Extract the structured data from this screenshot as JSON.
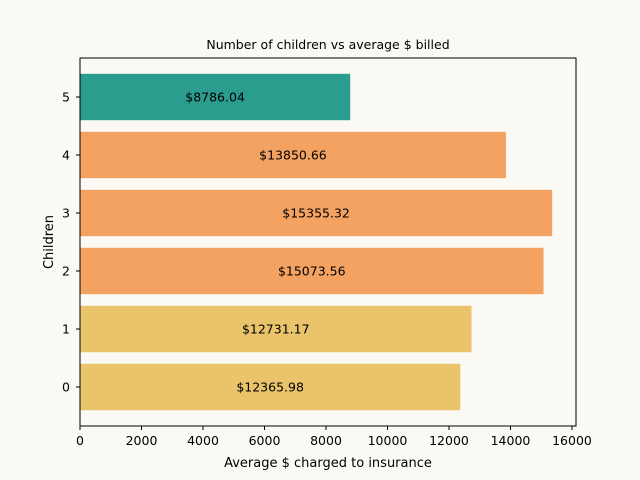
{
  "chart_data": {
    "type": "bar",
    "orientation": "horizontal",
    "title": "Number of children vs average $ billed",
    "xlabel": "Average $ charged to insurance",
    "ylabel": "Children",
    "categories": [
      "0",
      "1",
      "2",
      "3",
      "4",
      "5"
    ],
    "values": [
      12365.98,
      12731.17,
      15073.56,
      15355.32,
      13850.66,
      8786.04
    ],
    "data_labels": [
      "$12365.98",
      "$12731.17",
      "$15073.56",
      "$15355.32",
      "$13850.66",
      "$8786.04"
    ],
    "bar_colors": [
      "#e9c46a",
      "#e9c46a",
      "#f4a261",
      "#f4a261",
      "#f4a261",
      "#2a9d8f"
    ],
    "xlim": [
      0,
      16130
    ],
    "xticks": [
      0,
      2000,
      4000,
      6000,
      8000,
      10000,
      12000,
      14000,
      16000
    ],
    "grid": false,
    "legend": "none"
  },
  "colors": {
    "background": "#fbf9f4",
    "axes": "#000000"
  }
}
